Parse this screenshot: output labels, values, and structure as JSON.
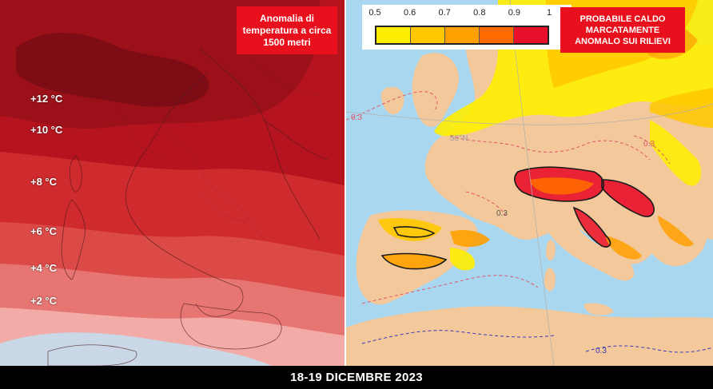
{
  "left_map": {
    "title": "Anomalia di temperatura a circa 1500 metri",
    "isotherms": [
      "+12 °C",
      "+10 °C",
      "+8 °C",
      "+6 °C",
      "+4 °C",
      "+2 °C"
    ],
    "colors": {
      "level_12": "#8e0e18",
      "level_10": "#b5141f",
      "level_8": "#cf2a2e",
      "level_6": "#dc4a48",
      "level_4": "#e77572",
      "level_2": "#f2aba6",
      "level_0": "#f6dad6",
      "negative": "#c9d7e6"
    }
  },
  "right_map": {
    "title": "PROBABILE CALDO MARCATAMENTE ANOMALO SUI RILIEVI",
    "legend": {
      "ticks": [
        "0.5",
        "0.6",
        "0.7",
        "0.8",
        "0.9",
        "1"
      ],
      "colors": [
        "#ffee00",
        "#ffc800",
        "#ffa000",
        "#ff6a00",
        "#e8102a"
      ]
    },
    "labels": {
      "lat_50": "50°N",
      "contour_a": "0.3",
      "contour_b": "0.3",
      "contour_c": "0.3",
      "contour_d": "0.3"
    },
    "colors": {
      "sea": "#a9d7f0",
      "land": "#f3c89a",
      "contour_dashed_red": "#e0566a",
      "contour_dashed_blue": "#3b3bb8"
    }
  },
  "footer": {
    "date": "18-19 DICEMBRE 2023"
  }
}
